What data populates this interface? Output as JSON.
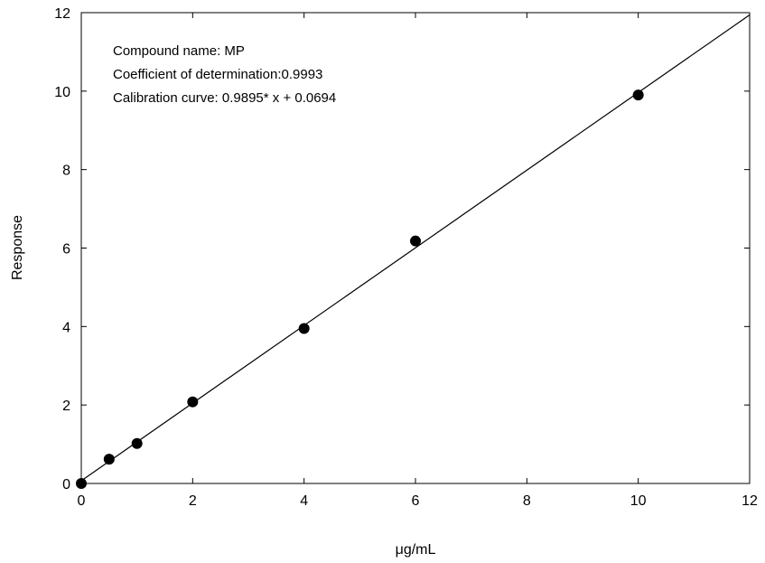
{
  "chart_data": {
    "type": "scatter",
    "xlabel": "μg/mL",
    "ylabel": "Response",
    "xlim": [
      0,
      12
    ],
    "ylim": [
      0,
      12
    ],
    "xticks": [
      "0",
      "2",
      "4",
      "6",
      "8",
      "10",
      "12"
    ],
    "yticks": [
      "0",
      "2",
      "4",
      "6",
      "8",
      "10",
      "12"
    ],
    "grid": false,
    "points": {
      "x": [
        0,
        0.5,
        1,
        2,
        4,
        6,
        10
      ],
      "y": [
        0.0,
        0.62,
        1.02,
        2.08,
        3.95,
        6.18,
        9.9
      ]
    },
    "fit_line": {
      "slope": 0.9895,
      "intercept": 0.0694,
      "x_range": [
        0,
        12
      ]
    },
    "annotations": [
      "Compound name: MP",
      "Coefficient of determination:0.9993",
      "Calibration curve: 0.9895* x + 0.0694"
    ],
    "colors": {
      "marker": "#000000",
      "line": "#000000",
      "axis": "#000000"
    }
  }
}
